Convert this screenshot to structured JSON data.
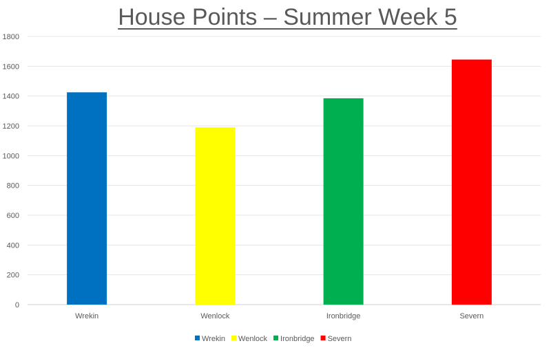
{
  "chart_data": {
    "type": "bar",
    "title": "House Points – Summer Week 5",
    "categories": [
      "Wrekin",
      "Wenlock",
      "Ironbridge",
      "Severn"
    ],
    "values": [
      1425,
      1190,
      1385,
      1645
    ],
    "colors": [
      "#0070C0",
      "#FFFF00",
      "#00B050",
      "#FF0000"
    ],
    "ylim": [
      0,
      1800
    ],
    "yticks": [
      0,
      200,
      400,
      600,
      800,
      1000,
      1200,
      1400,
      1600,
      1800
    ],
    "grid": true,
    "legend": {
      "placement": "bottom",
      "entries": [
        "Wrekin",
        "Wenlock",
        "Ironbridge",
        "Severn"
      ]
    }
  }
}
